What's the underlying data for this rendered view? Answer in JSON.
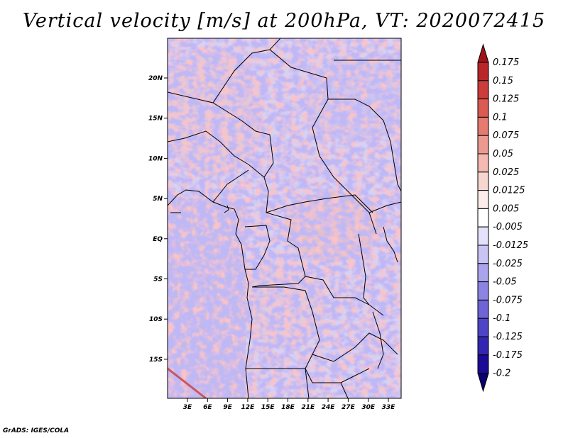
{
  "title": "Vertical velocity [m/s] at 200hPa, VT: 2020072415",
  "credit": "GrADS: IGES/COLA",
  "map": {
    "lat_labels": [
      "20N",
      "15N",
      "10N",
      "5N",
      "EQ",
      "5S",
      "10S",
      "15S"
    ],
    "lon_labels": [
      "3E",
      "6E",
      "9E",
      "12E",
      "15E",
      "18E",
      "21E",
      "24E",
      "27E",
      "30E",
      "33E"
    ]
  },
  "colorbar": {
    "levels": [
      "0.175",
      "0.15",
      "0.125",
      "0.1",
      "0.075",
      "0.05",
      "0.025",
      "0.0125",
      "0.005",
      "-0.005",
      "-0.0125",
      "-0.025",
      "-0.05",
      "-0.075",
      "-0.1",
      "-0.125",
      "-0.175",
      "-0.2"
    ],
    "colors": [
      "#a01218",
      "#b8262a",
      "#cc3c3a",
      "#dc5a52",
      "#e47a70",
      "#ec9a90",
      "#f4bab2",
      "#f8d6d0",
      "#fcecea",
      "#ffffff",
      "#e4e2fa",
      "#c8c4f4",
      "#aaa4ec",
      "#8c84e2",
      "#6e64d6",
      "#4e44c8",
      "#3226b2",
      "#1c0a96",
      "#0c006e"
    ]
  }
}
